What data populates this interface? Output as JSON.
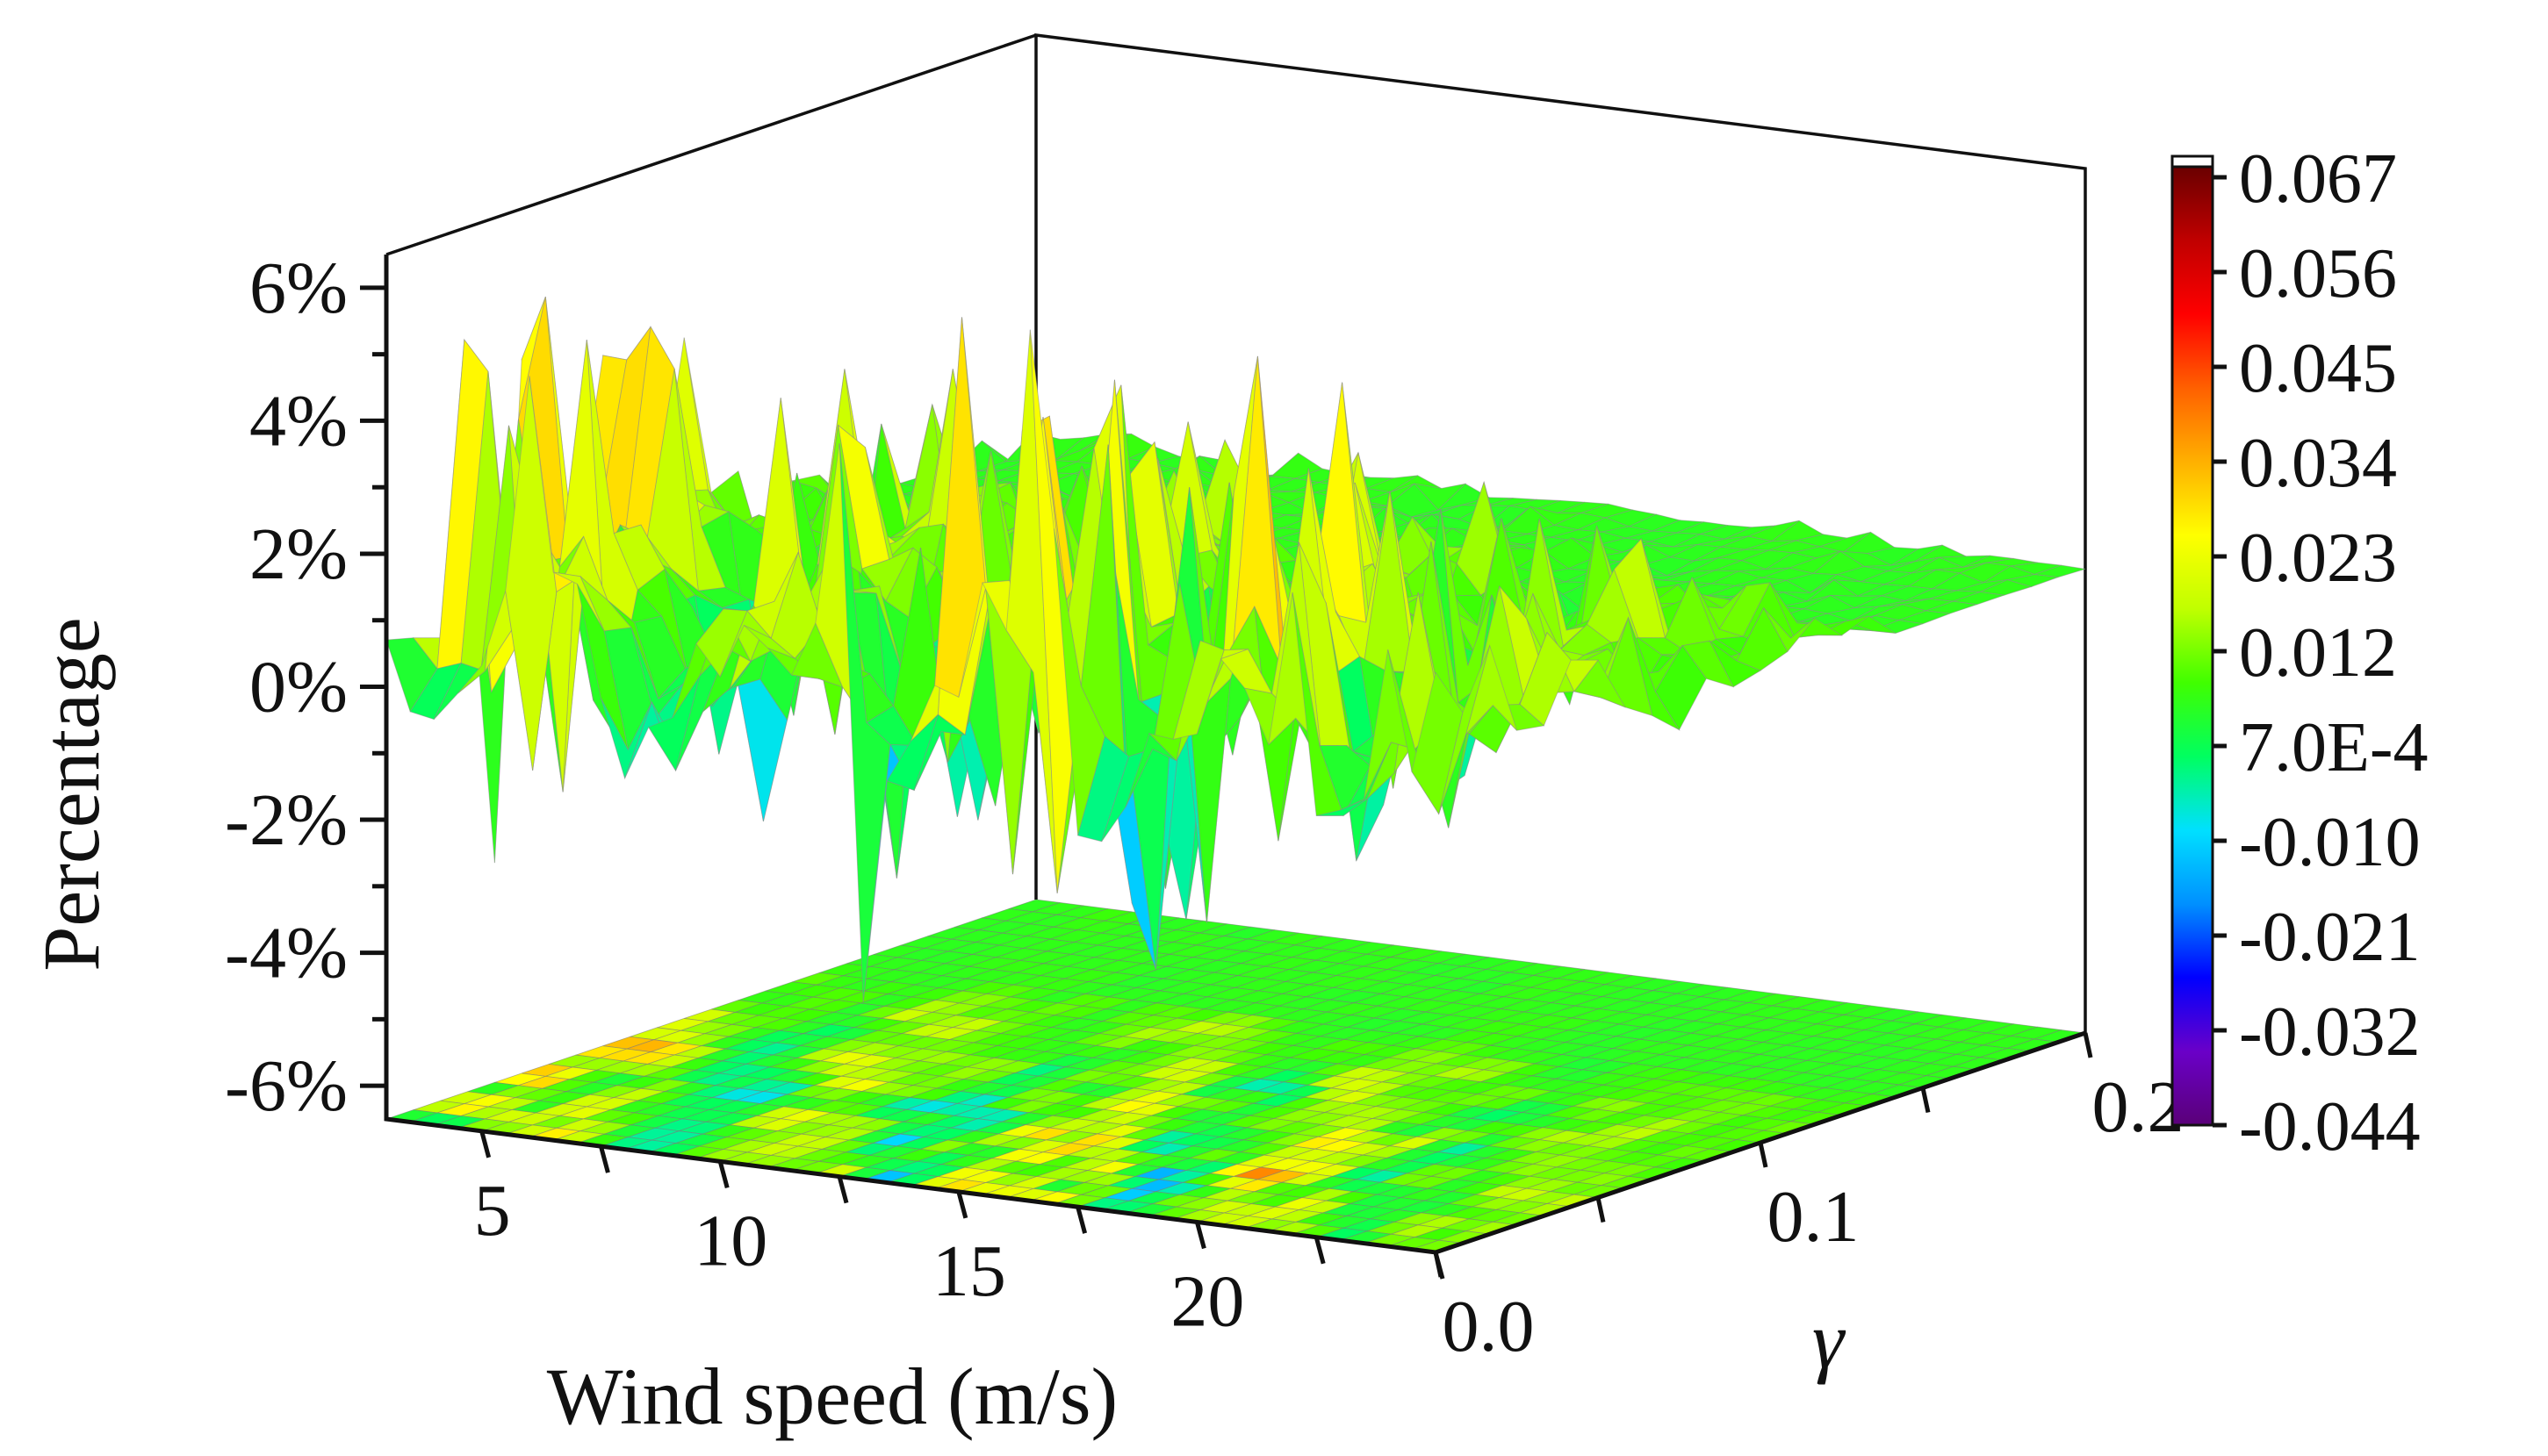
{
  "chart_data": {
    "type": "surface3d",
    "title": "",
    "zlabel": "Percentage",
    "xlabel": "Wind speed (m/s)",
    "ylabel": "γ",
    "x_ticks": [
      "5",
      "10",
      "15",
      "20"
    ],
    "y_ticks": [
      "0.0",
      "0.1",
      "0.2"
    ],
    "z_ticks": [
      "-6%",
      "-4%",
      "-2%",
      "0%",
      "2%",
      "4%",
      "6%"
    ],
    "xlim": [
      3,
      25
    ],
    "ylim": [
      0,
      0.2
    ],
    "zlim": [
      -0.065,
      0.065
    ],
    "colorbar": {
      "min": -0.044,
      "max": 0.067,
      "labels": [
        "0.067",
        "0.056",
        "0.045",
        "0.034",
        "0.023",
        "0.012",
        "7.0E-4",
        "-0.010",
        "-0.021",
        "-0.032",
        "-0.044"
      ],
      "colors": [
        "#5a0078",
        "#6a00c8",
        "#0000ff",
        "#0090ff",
        "#00e0ff",
        "#00ff60",
        "#40ff00",
        "#c0ff00",
        "#ffff00",
        "#ffb000",
        "#ff6000",
        "#ff0000",
        "#c00000",
        "#6a0000"
      ]
    },
    "series_note": "Surface of percentage difference over wind speed (3-25 m/s) and gamma (0.0-0.2); large fluctuations (about -4% to +6%) for low gamma, near 0-1% for high gamma; projected contour map on the floor."
  }
}
